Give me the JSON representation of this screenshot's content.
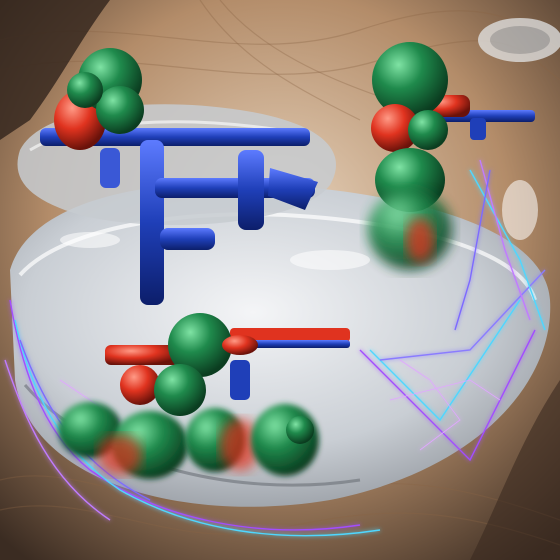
{
  "image": {
    "kind": "surreal digital artwork",
    "text": []
  },
  "palette": {
    "background_warm": "#c9a27e",
    "background_dark": "#3b2c22",
    "bowl_silver": "#d9dde2",
    "figure_green": "#1f8a4c",
    "figure_red": "#e0331f",
    "tool_blue": "#1f3fb8",
    "glow_violet": "#a24dff",
    "glow_cyan": "#4fd7ff"
  }
}
